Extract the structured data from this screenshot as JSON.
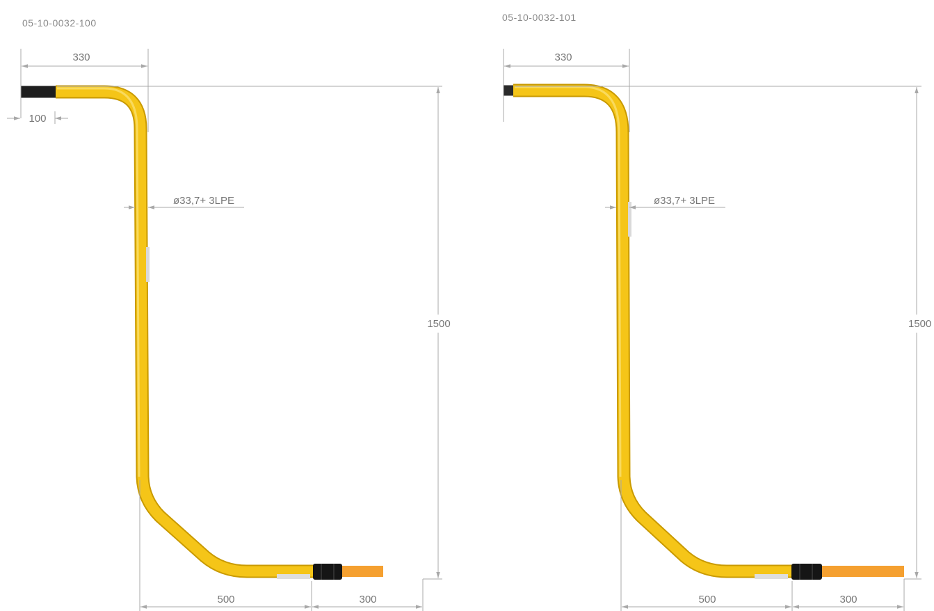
{
  "drawings": [
    {
      "code": "05-10-0032-100",
      "dims": {
        "top_width": "330",
        "steel_end": "100",
        "diameter": "ø33,7+ 3LPE",
        "height": "1500",
        "bottom_run": "500",
        "pe_end": "300"
      }
    },
    {
      "code": "05-10-0032-101",
      "dims": {
        "top_width": "330",
        "diameter": "ø33,7+ 3LPE",
        "height": "1500",
        "bottom_run": "500",
        "pe_end": "300"
      }
    }
  ],
  "colors": {
    "pipe_yellow": "#f5c518",
    "pipe_yellow_edge": "#c99a00",
    "steel_black": "#1e1e1e",
    "pe_orange": "#f5a030",
    "dimension_line": "#a8a8a8",
    "text": "#777777"
  }
}
